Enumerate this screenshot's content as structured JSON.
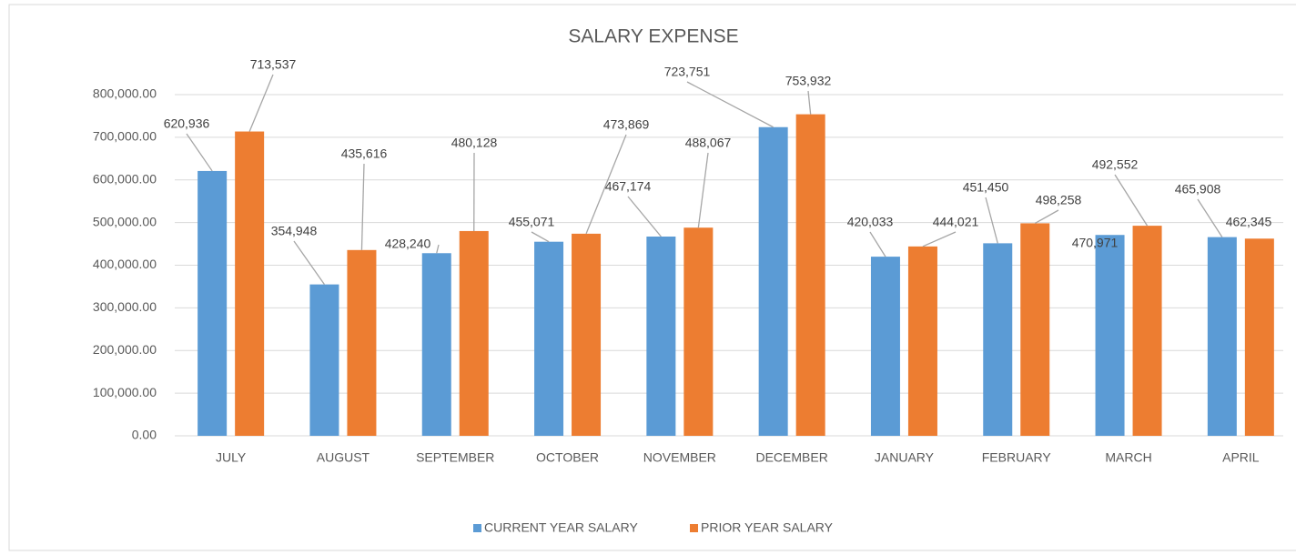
{
  "chart_data": {
    "type": "bar",
    "title": "SALARY EXPENSE",
    "categories": [
      "JULY",
      "AUGUST",
      "SEPTEMBER",
      "OCTOBER",
      "NOVEMBER",
      "DECEMBER",
      "JANUARY",
      "FEBRUARY",
      "MARCH",
      "APRIL"
    ],
    "series": [
      {
        "name": "CURRENT YEAR SALARY",
        "color": "#5b9bd5",
        "values": [
          620936,
          354948,
          428240,
          455071,
          467174,
          723751,
          420033,
          451450,
          470971,
          465908
        ],
        "value_labels": [
          "620,936",
          "354,948",
          "428,240",
          "455,071",
          "467,174",
          "723,751",
          "420,033",
          "451,450",
          "470,971",
          "465,908"
        ]
      },
      {
        "name": "PRIOR YEAR SALARY",
        "color": "#ed7d31",
        "values": [
          713537,
          435616,
          480128,
          473869,
          488067,
          753932,
          444021,
          498258,
          492552,
          462345
        ],
        "value_labels": [
          "713,537",
          "435,616",
          "480,128",
          "473,869",
          "488,067",
          "753,932",
          "444,021",
          "498,258",
          "492,552",
          "462,345"
        ]
      }
    ],
    "ylim": [
      0,
      800000
    ],
    "yticks": [
      {
        "value": 0,
        "label": "0.00"
      },
      {
        "value": 100000,
        "label": "100,000.00"
      },
      {
        "value": 200000,
        "label": "200,000.00"
      },
      {
        "value": 300000,
        "label": "300,000.00"
      },
      {
        "value": 400000,
        "label": "400,000.00"
      },
      {
        "value": 500000,
        "label": "500,000.00"
      },
      {
        "value": 600000,
        "label": "600,000.00"
      },
      {
        "value": 700000,
        "label": "700,000.00"
      },
      {
        "value": 800000,
        "label": "800,000.00"
      }
    ],
    "grid": true,
    "legend": "bottom"
  }
}
